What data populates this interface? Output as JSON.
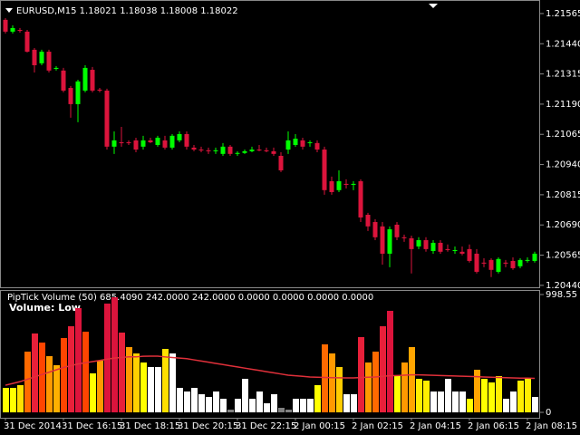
{
  "chart_data": [
    {
      "type": "candlestick",
      "title": "EURUSD,M15  1.18021 1.18038 1.18008 1.18022",
      "up_color": "#00ff00",
      "down_color": "#dc143c",
      "ylim": [
        1.20432,
        1.21621
      ],
      "yticks": [
        1.21565,
        {
          "value": 1.2144,
          "label": "1.21440"
        },
        1.21315,
        {
          "value": 1.2119,
          "label": "1.21190"
        },
        1.21065,
        {
          "value": 1.2094,
          "label": "1.20940"
        },
        1.20815,
        {
          "value": 1.2069,
          "label": "1.20690"
        },
        1.20565,
        {
          "value": 1.2044,
          "label": "1.20440"
        }
      ],
      "open": [
        1.21539,
        1.2149,
        1.21497,
        1.2149,
        1.21415,
        1.21359,
        1.21407,
        1.21336,
        1.21329,
        1.21257,
        1.2119,
        1.21246,
        1.21332,
        1.2125,
        1.21246,
        1.21014,
        1.21032,
        1.21032,
        1.2104,
        1.21014,
        1.2104,
        1.21021,
        1.2104,
        1.2101,
        1.2104,
        1.21066,
        1.2101,
        1.21002,
        1.20999,
        1.20995,
        1.20984,
        1.21014,
        1.20984,
        1.20988,
        1.20995,
        1.21002,
        1.20999,
        1.20995,
        1.20976,
        1.21002,
        1.21021,
        1.2104,
        1.21029,
        1.21029,
        1.21002,
        1.20871,
        1.20834,
        1.2086,
        1.20856,
        1.20871,
        1.20732,
        1.20702,
        1.20684,
        1.20571,
        1.20691,
        1.20639,
        1.20635,
        1.20601,
        1.20627,
        1.20582,
        1.20616,
        1.2059,
        1.20582,
        1.20579,
        1.2059,
        1.20571,
        1.20534,
        1.20545,
        1.20496,
        1.20534,
        1.20541,
        1.20519,
        1.20541,
        1.20541
      ],
      "high": [
        1.21546,
        1.21516,
        1.21505,
        1.21497,
        1.21422,
        1.21415,
        1.21415,
        1.21347,
        1.2134,
        1.21265,
        1.21291,
        1.21351,
        1.21344,
        1.21257,
        1.21254,
        1.21077,
        1.21096,
        1.2104,
        1.21051,
        1.21059,
        1.21051,
        1.21059,
        1.21059,
        1.21066,
        1.21077,
        1.21077,
        1.21021,
        1.21014,
        1.2101,
        1.2101,
        1.21029,
        1.21021,
        1.20995,
        1.21002,
        1.21014,
        1.21021,
        1.2101,
        1.2101,
        1.20991,
        1.21077,
        1.21066,
        1.21051,
        1.2104,
        1.2104,
        1.21014,
        1.2089,
        1.20916,
        1.20879,
        1.20871,
        1.20879,
        1.2074,
        1.20714,
        1.20702,
        1.20684,
        1.20702,
        1.2065,
        1.20646,
        1.20639,
        1.20639,
        1.20627,
        1.20627,
        1.20609,
        1.20601,
        1.20601,
        1.20609,
        1.2059,
        1.20552,
        1.20552,
        1.20556,
        1.20545,
        1.20556,
        1.20552,
        1.20556,
        1.20579
      ],
      "low": [
        1.21482,
        1.21482,
        1.21486,
        1.21404,
        1.21321,
        1.21351,
        1.21321,
        1.21329,
        1.21239,
        1.21134,
        1.21115,
        1.21239,
        1.21239,
        1.21239,
        1.21002,
        1.20984,
        1.21014,
        1.21021,
        1.20991,
        1.21002,
        1.21029,
        1.21014,
        1.21002,
        1.21002,
        1.21032,
        1.21002,
        1.20995,
        1.20991,
        1.20984,
        1.20984,
        1.20976,
        1.20976,
        1.20976,
        1.20984,
        1.20991,
        1.20995,
        1.20991,
        1.20976,
        1.20909,
        1.20984,
        1.21014,
        1.21002,
        1.21014,
        1.20991,
        1.20815,
        1.20815,
        1.20826,
        1.20841,
        1.20834,
        1.20702,
        1.20665,
        1.20627,
        1.20526,
        1.20515,
        1.20627,
        1.2062,
        1.20489,
        1.2059,
        1.20579,
        1.20571,
        1.20571,
        1.20579,
        1.20571,
        1.20564,
        1.20534,
        1.20489,
        1.20515,
        1.20474,
        1.20489,
        1.20515,
        1.20504,
        1.20511,
        1.20534,
        1.20534
      ],
      "close": [
        1.2149,
        1.21505,
        1.21494,
        1.21407,
        1.21351,
        1.21407,
        1.21329,
        1.2134,
        1.21246,
        1.2119,
        1.21284,
        1.2134,
        1.21246,
        1.21246,
        1.21014,
        1.2104,
        1.21029,
        1.21029,
        1.21002,
        1.2104,
        1.21032,
        1.21051,
        1.2101,
        1.21059,
        1.21066,
        1.21014,
        1.21002,
        1.20999,
        1.20995,
        1.20999,
        1.21014,
        1.20984,
        1.20988,
        1.20995,
        1.21002,
        1.20999,
        1.20995,
        1.20984,
        1.20916,
        1.2104,
        1.21047,
        1.21014,
        1.21032,
        1.21002,
        1.20834,
        1.20826,
        1.20871,
        1.20856,
        1.2086,
        1.20721,
        1.20684,
        1.20639,
        1.20571,
        1.20672,
        1.20639,
        1.20635,
        1.2059,
        1.20627,
        1.2059,
        1.20616,
        1.20579,
        1.20586,
        1.20586,
        1.20571,
        1.20541,
        1.20496,
        1.2053,
        1.20504,
        1.20549,
        1.2053,
        1.20511,
        1.20545,
        1.20545,
        1.20571
      ]
    },
    {
      "type": "bar",
      "title": "PipTick Volume  (50) 685.4090 242.0000 242.0000 0.0000 0.0000 0.0000 0.0000",
      "annotation": "Volume:  Low",
      "ylim": [
        0,
        998.55
      ],
      "yticks": [
        0,
        998.55
      ],
      "categories": [
        "31 Dec 2014",
        null,
        null,
        null,
        null,
        null,
        null,
        null,
        "31 Dec 16:15",
        null,
        null,
        null,
        null,
        null,
        null,
        null,
        "31 Dec 18:15",
        null,
        null,
        null,
        null,
        null,
        null,
        null,
        "31 Dec 20:15",
        null,
        null,
        null,
        null,
        null,
        null,
        null,
        "31 Dec 22:15",
        null,
        null,
        null,
        null,
        null,
        null,
        null,
        "2 Jan 00:15",
        null,
        null,
        null,
        null,
        null,
        null,
        null,
        "2 Jan 02:15",
        null,
        null,
        null,
        null,
        null,
        null,
        null,
        "2 Jan 04:15",
        null,
        null,
        null,
        null,
        null,
        null,
        null,
        "2 Jan 06:15",
        null,
        null,
        null,
        null,
        null,
        null,
        null,
        "2 Jan 08:15",
        null
      ],
      "series": [
        {
          "type": "bar",
          "values": [
            207.4,
            207.4,
            230.4,
            514.6,
            668.3,
            591.4,
            476.2,
            399.4,
            629.8,
            729.7,
            883.3,
            683.6,
            330.3,
            437.8,
            921.7,
            975.5,
            675.9,
            553.0,
            499.3,
            422.5,
            384.1,
            384.1,
            537.7,
            499.3,
            207.4,
            176.7,
            207.4,
            153.6,
            130.6,
            176.7,
            115.2,
            23.0,
            115.2,
            284.2,
            115.2,
            176.7,
            76.8,
            153.6,
            38.4,
            23.0,
            115.2,
            115.2,
            115.2,
            230.4,
            576.1,
            499.3,
            384.1,
            153.6,
            153.6,
            637.5,
            422.5,
            514.6,
            729.7,
            860.3,
            307.2,
            422.5,
            553.0,
            284.2,
            268.8,
            176.7,
            176.7,
            284.2,
            176.7,
            176.7,
            115.2,
            361.0,
            284.2,
            253.5,
            307.2,
            115.2,
            176.7,
            268.8,
            284.2,
            130.6
          ],
          "colors": [
            "#ffff00",
            "#ffff00",
            "#ffe000",
            "#ff6a00",
            "#e8203a",
            "#ff4500",
            "#ff9900",
            "#ffb000",
            "#ff4500",
            "#e8203a",
            "#dc143c",
            "#ff4500",
            "#ffff00",
            "#ff9900",
            "#dc143c",
            "#dc143c",
            "#e8203a",
            "#ff9900",
            "#ffd000",
            "#ffff00",
            "#ffffff",
            "#ffffff",
            "#ffe000",
            "#ffffff",
            "#ffffff",
            "#ffffff",
            "#ffffff",
            "#ffffff",
            "#ffffff",
            "#ffffff",
            "#ffffff",
            "#808080",
            "#ffffff",
            "#ffffff",
            "#ffffff",
            "#ffffff",
            "#ffffff",
            "#ffffff",
            "#808080",
            "#808080",
            "#ffffff",
            "#ffffff",
            "#ffffff",
            "#ffff00",
            "#ff6a00",
            "#ff9900",
            "#ffcc00",
            "#ffffff",
            "#ffffff",
            "#e8203a",
            "#ff9900",
            "#ff6a00",
            "#e8203a",
            "#dc143c",
            "#ffff00",
            "#ff9900",
            "#ffa500",
            "#ffee00",
            "#ffee00",
            "#ffffff",
            "#ffffff",
            "#ffffff",
            "#ffffff",
            "#ffffff",
            "#ffff00",
            "#ffa500",
            "#ffff00",
            "#ffff00",
            "#ffee00",
            "#ffffff",
            "#ffffff",
            "#ffee00",
            "#ffee00",
            "#ffffff"
          ]
        },
        {
          "type": "line",
          "color": "#e0303a",
          "values": [
            230,
            245,
            260,
            280,
            300,
            320,
            340,
            360,
            380,
            395,
            410,
            420,
            430,
            440,
            450,
            460,
            465,
            470,
            470,
            475,
            476,
            476,
            470,
            465,
            460,
            455,
            445,
            435,
            425,
            415,
            405,
            395,
            385,
            375,
            365,
            355,
            345,
            335,
            325,
            315,
            310,
            305,
            300,
            298,
            296,
            294,
            293,
            292,
            292,
            295,
            298,
            300,
            305,
            310,
            312,
            315,
            318,
            318,
            316,
            314,
            312,
            310,
            308,
            306,
            304,
            302,
            300,
            298,
            296,
            294,
            292,
            290,
            290,
            288
          ]
        }
      ]
    }
  ]
}
